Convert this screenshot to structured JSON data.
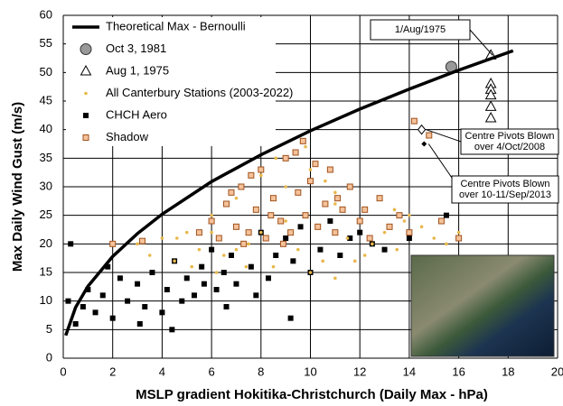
{
  "chart_data": {
    "type": "scatter",
    "x_label": "MSLP gradient Hokitika-Christchurch (Daily Max - hPa)",
    "y_label": "Max Daily Wind Gust (m/s)",
    "xlim": [
      0,
      20
    ],
    "xticks": [
      0,
      2,
      4,
      6,
      8,
      10,
      12,
      14,
      16,
      18,
      20
    ],
    "ylim": [
      0,
      60
    ],
    "yticks": [
      0,
      5,
      10,
      15,
      20,
      25,
      30,
      35,
      40,
      45,
      50,
      55,
      60
    ],
    "grid": true,
    "legend": "upper-left",
    "series": [
      {
        "name": "Theoretical Max - Bernoulli",
        "type": "line",
        "color": "#000000",
        "x": [
          0.1,
          0.5,
          1,
          2,
          3,
          4,
          6,
          8,
          10,
          12,
          14,
          16,
          18.2
        ],
        "values": [
          3.98,
          8.9,
          12.6,
          17.8,
          21.8,
          25.2,
          30.9,
          35.6,
          39.8,
          43.6,
          47.1,
          50.4,
          53.8
        ]
      },
      {
        "name": "Oct 3, 1981",
        "marker": "circle",
        "color": "#999999",
        "x": [
          15.7
        ],
        "values": [
          51
        ]
      },
      {
        "name": "Aug 1, 1975",
        "marker": "triangle",
        "color": "#ffffff",
        "x": [
          17.3,
          17.3,
          17.3,
          17.3,
          17.3,
          17.3
        ],
        "values": [
          53,
          48,
          47,
          46,
          44,
          42
        ]
      },
      {
        "name": "All Canterbury Stations (2003-2022)",
        "marker": "dot",
        "color": "#e8b84a",
        "x": [
          3,
          3.5,
          4,
          4.5,
          5,
          5.5,
          6,
          6.5,
          7,
          7.5,
          8,
          8.5,
          9,
          9.5,
          10,
          10.5,
          11,
          11.5,
          12,
          12.5,
          13,
          13.5,
          14,
          14.5,
          15,
          15.5,
          16,
          6.2,
          7.4,
          8.6,
          9.8,
          11,
          12.2,
          13.4,
          8,
          9,
          10,
          11,
          7,
          6,
          5.2,
          4.6,
          10.6,
          11.8,
          12.8,
          13.8
        ],
        "values": [
          20,
          18,
          21,
          17,
          22,
          19,
          25,
          18,
          28,
          20,
          32,
          16,
          30,
          19,
          33,
          17,
          27,
          21,
          24,
          20,
          22,
          19,
          25,
          23,
          21,
          20,
          22,
          15,
          16,
          35,
          37,
          14,
          18,
          26,
          22,
          24,
          15,
          29,
          19,
          22,
          16,
          21,
          31,
          17,
          28,
          24
        ]
      },
      {
        "name": "CHCH Aero",
        "marker": "square",
        "color": "#000000",
        "x": [
          0.2,
          0.5,
          0.8,
          1,
          1.3,
          1.6,
          2,
          2.3,
          2.6,
          3,
          3.3,
          3.6,
          4,
          4.2,
          4.5,
          4.8,
          5,
          5.3,
          5.6,
          6,
          6.2,
          6.5,
          6.8,
          7,
          7.3,
          7.6,
          8,
          8.3,
          8.6,
          9,
          9.3,
          9.6,
          10,
          10.4,
          10.8,
          11.2,
          11.6,
          12,
          12.5,
          13,
          14,
          15.5,
          0.3,
          1.8,
          3.1,
          4.4,
          5.7,
          6.6,
          7.8,
          9.2
        ],
        "values": [
          10,
          6,
          9,
          12,
          8,
          11,
          7,
          14,
          10,
          13,
          9,
          15,
          8,
          12,
          17,
          10,
          14,
          11,
          16,
          19,
          12,
          15,
          18,
          13,
          20,
          16,
          22,
          14,
          18,
          21,
          17,
          23,
          15,
          19,
          24,
          18,
          21,
          22,
          20,
          19,
          21,
          25,
          20,
          16,
          6,
          5,
          13,
          9,
          11,
          7
        ]
      },
      {
        "name": "Shadow",
        "marker": "square",
        "color": "#f5c29a",
        "x": [
          2,
          3.2,
          5.5,
          6,
          6.3,
          6.6,
          7,
          7.2,
          7.5,
          7.8,
          8,
          8.2,
          8.5,
          8.8,
          9,
          9.2,
          9.5,
          9.8,
          10,
          10.3,
          10.6,
          11,
          11.3,
          11.6,
          12,
          12.4,
          12.8,
          13.2,
          13.6,
          14,
          14.2,
          14.8,
          15.3,
          16,
          6.8,
          7.6,
          8.4,
          9.4,
          10.2,
          11.1,
          12.2,
          8.9,
          9.7,
          10.8,
          7.3
        ],
        "values": [
          20,
          20.5,
          22,
          24,
          21,
          27,
          23,
          30,
          22,
          26,
          33,
          21,
          28,
          24,
          35,
          22,
          29,
          25,
          31,
          23,
          27,
          22,
          26,
          30,
          24,
          21,
          28,
          23,
          25,
          22,
          41.5,
          39,
          24,
          21,
          29,
          32,
          25,
          36,
          34,
          28,
          26,
          20,
          38,
          33,
          20
        ]
      }
    ],
    "annotations": [
      {
        "text": [
          "1/Aug/1975"
        ],
        "x": 17.3,
        "y": 53,
        "marker": "none"
      },
      {
        "text": [
          "Centre Pivots Blown",
          "over 4/Oct/2008"
        ],
        "x": 14.5,
        "y": 40,
        "marker": "diamond-open"
      },
      {
        "text": [
          "Centre Pivots Blown",
          "over 10-11/Sep/2013"
        ],
        "x": 14.6,
        "y": 37.5,
        "marker": "diamond-filled"
      }
    ]
  }
}
